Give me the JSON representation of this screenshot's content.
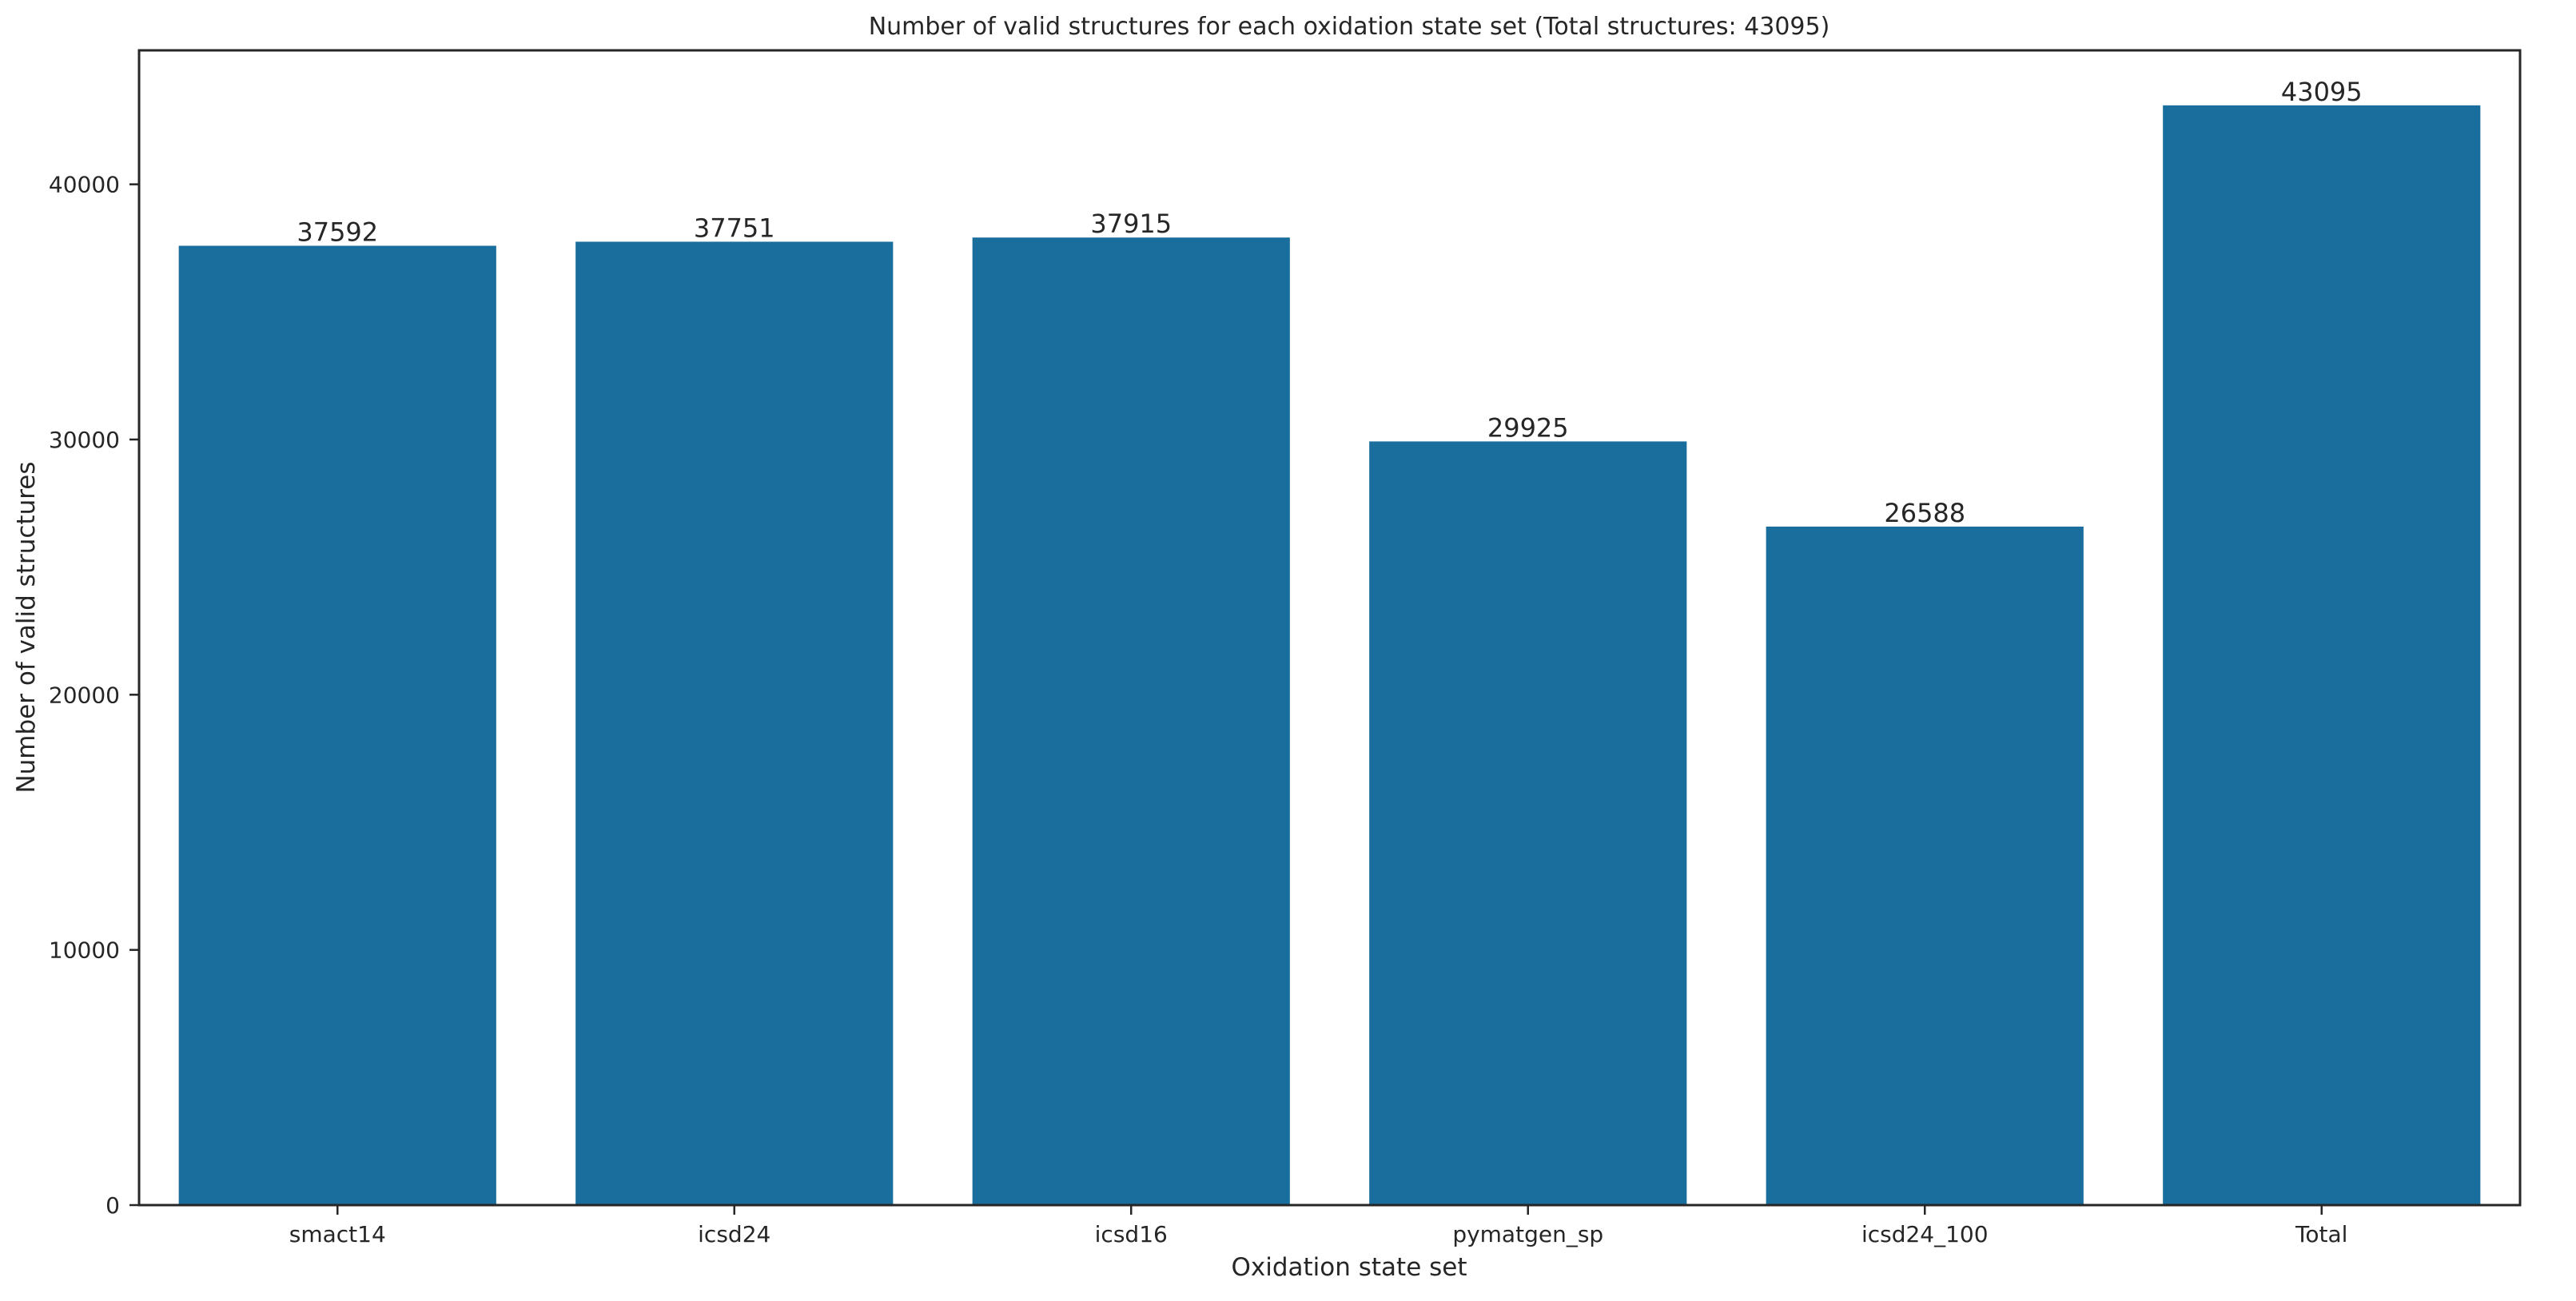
{
  "chart_data": {
    "type": "bar",
    "title": "Number of valid structures for each oxidation state set (Total structures: 43095)",
    "xlabel": "Oxidation state set",
    "ylabel": "Number of valid structures",
    "categories": [
      "smact14",
      "icsd24",
      "icsd16",
      "pymatgen_sp",
      "icsd24_100",
      "Total"
    ],
    "values": [
      37592,
      37751,
      37915,
      29925,
      26588,
      43095
    ],
    "data_labels": [
      "37592",
      "37751",
      "37915",
      "29925",
      "26588",
      "43095"
    ],
    "ylim": [
      0,
      45250
    ],
    "yticks": [
      0,
      10000,
      20000,
      30000,
      40000
    ],
    "ytick_labels": [
      "0",
      "10000",
      "20000",
      "30000",
      "40000"
    ],
    "grid": false,
    "bar_color": "#1a6e9d"
  }
}
